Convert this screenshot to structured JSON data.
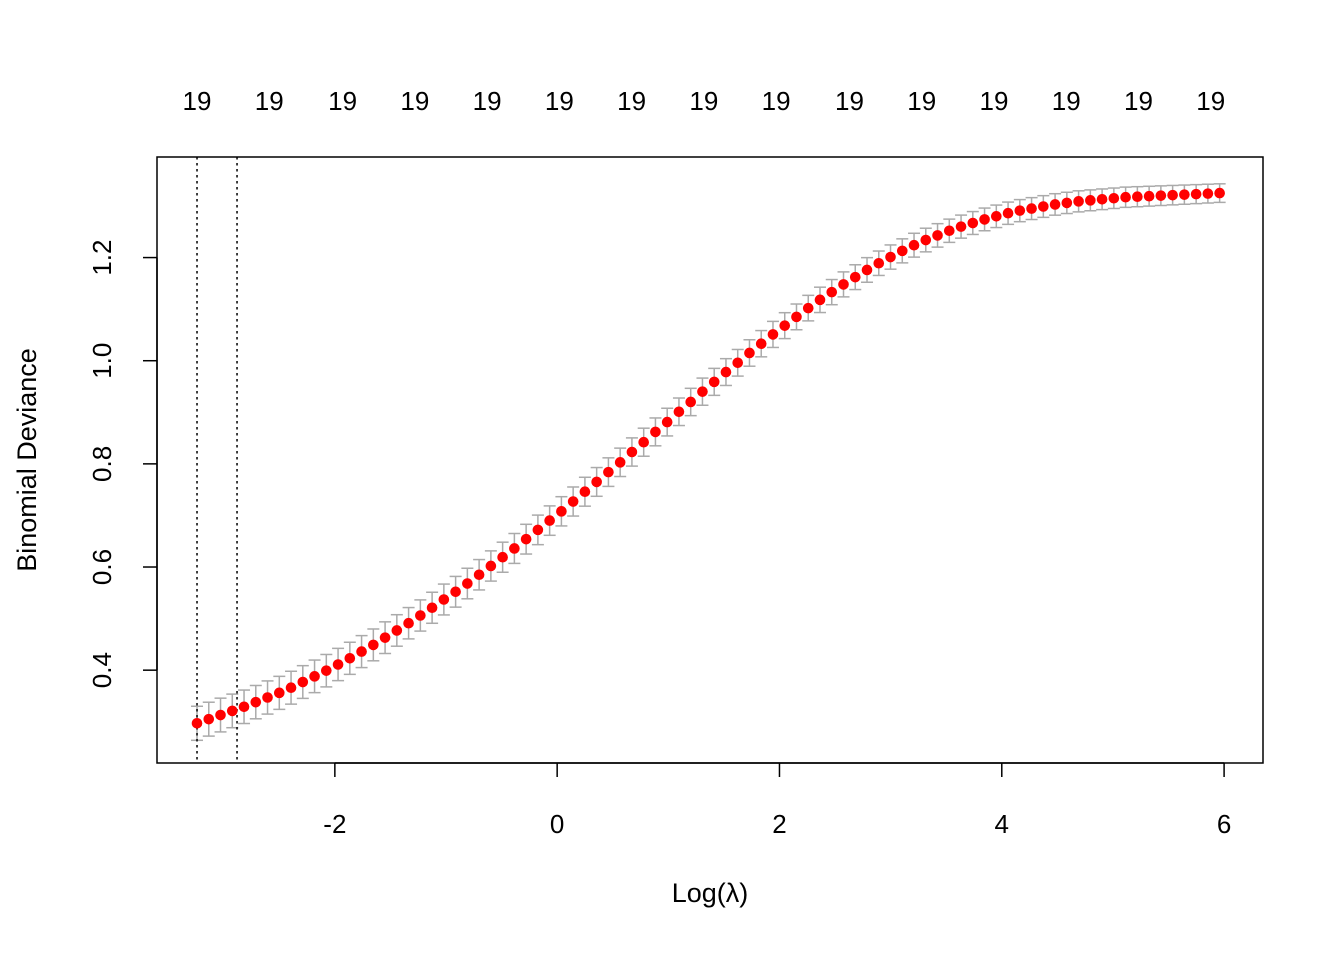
{
  "chart_data": {
    "type": "scatter",
    "title": "",
    "xlabel": "Log(λ)",
    "ylabel": "Binomial Deviance",
    "xlim": [
      -3.6,
      6.35
    ],
    "ylim": [
      0.22,
      1.395
    ],
    "x_ticks": [
      -2,
      0,
      2,
      4,
      6
    ],
    "x_tick_labels": [
      "-2",
      "0",
      "2",
      "4",
      "6"
    ],
    "y_ticks": [
      0.4,
      0.6,
      0.8,
      1.0,
      1.2
    ],
    "y_tick_labels": [
      "0.4",
      "0.6",
      "0.8",
      "1.0",
      "1.2"
    ],
    "top_axis": {
      "positions": [
        -3.24,
        -2.59,
        -1.93,
        -1.28,
        -0.63,
        0.02,
        0.67,
        1.32,
        1.97,
        2.63,
        3.28,
        3.93,
        4.58,
        5.23,
        5.88
      ],
      "labels": [
        "19",
        "19",
        "19",
        "19",
        "19",
        "19",
        "19",
        "19",
        "19",
        "19",
        "19",
        "19",
        "19",
        "19",
        "19"
      ]
    },
    "vlines": [
      -3.24,
      -2.88
    ],
    "grid": false,
    "point_color": "#ff0000",
    "errorbar_color": "#aaaaaa",
    "x_start": -3.24,
    "x_end": 5.96,
    "se": [
      0.033,
      0.027,
      0.018
    ],
    "series": [
      {
        "values": [
          0.297,
          0.305,
          0.313,
          0.321,
          0.329,
          0.338,
          0.347,
          0.356,
          0.366,
          0.377,
          0.388,
          0.399,
          0.411,
          0.423,
          0.436,
          0.449,
          0.463,
          0.477,
          0.491,
          0.506,
          0.521,
          0.537,
          0.552,
          0.568,
          0.585,
          0.602,
          0.619,
          0.636,
          0.654,
          0.672,
          0.69,
          0.708,
          0.727,
          0.746,
          0.765,
          0.784,
          0.803,
          0.823,
          0.842,
          0.862,
          0.881,
          0.901,
          0.92,
          0.94,
          0.959,
          0.978,
          0.996,
          1.015,
          1.033,
          1.051,
          1.068,
          1.085,
          1.102,
          1.118,
          1.133,
          1.148,
          1.162,
          1.176,
          1.189,
          1.201,
          1.213,
          1.224,
          1.234,
          1.243,
          1.252,
          1.26,
          1.267,
          1.274,
          1.28,
          1.286,
          1.291,
          1.295,
          1.299,
          1.303,
          1.306,
          1.309,
          1.311,
          1.313,
          1.315,
          1.317,
          1.318,
          1.319,
          1.32,
          1.321,
          1.322,
          1.323,
          1.324,
          1.325
        ]
      }
    ]
  }
}
